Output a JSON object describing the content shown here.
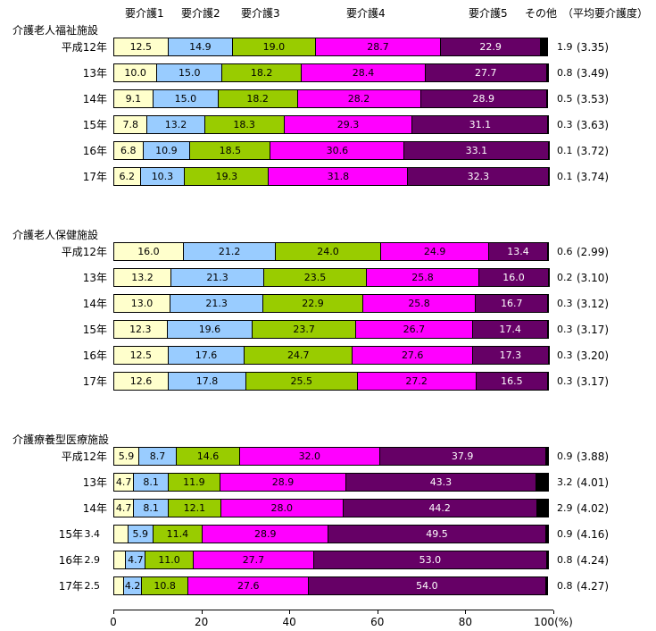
{
  "chart_data": {
    "type": "bar",
    "variant": "horizontal-stacked",
    "title": "",
    "xlabel": "(%)",
    "xlim": [
      0,
      100
    ],
    "grid": false,
    "legend_position": "top",
    "categories": [
      "要介護1",
      "要介護2",
      "要介護3",
      "要介護4",
      "要介護5",
      "その他"
    ],
    "category_colors": [
      "#FFFFCC",
      "#99CCFF",
      "#99CC00",
      "#FF00FF",
      "#660066",
      "#000000"
    ],
    "avg_header": "（平均要介護度）",
    "axis_ticks": [
      {
        "value": 0,
        "label": "0"
      },
      {
        "value": 20,
        "label": "20"
      },
      {
        "value": 40,
        "label": "40"
      },
      {
        "value": 60,
        "label": "60"
      },
      {
        "value": 80,
        "label": "80"
      },
      {
        "value": 100,
        "label": "100(%)"
      }
    ],
    "groups": [
      {
        "name": "介護老人福祉施設",
        "rows": [
          {
            "year": "平成12年",
            "values": [
              12.5,
              14.9,
              19.0,
              28.7,
              22.9,
              1.9
            ],
            "avg": "(3.35)"
          },
          {
            "year": "13年",
            "values": [
              10.0,
              15.0,
              18.2,
              28.4,
              27.7,
              0.8
            ],
            "avg": "(3.49)"
          },
          {
            "year": "14年",
            "values": [
              9.1,
              15.0,
              18.2,
              28.2,
              28.9,
              0.5
            ],
            "avg": "(3.53)"
          },
          {
            "year": "15年",
            "values": [
              7.8,
              13.2,
              18.3,
              29.3,
              31.1,
              0.3
            ],
            "avg": "(3.63)"
          },
          {
            "year": "16年",
            "values": [
              6.8,
              10.9,
              18.5,
              30.6,
              33.1,
              0.1
            ],
            "avg": "(3.72)"
          },
          {
            "year": "17年",
            "values": [
              6.2,
              10.3,
              19.3,
              31.8,
              32.3,
              0.1
            ],
            "avg": "(3.74)"
          }
        ]
      },
      {
        "name": "介護老人保健施設",
        "rows": [
          {
            "year": "平成12年",
            "values": [
              16.0,
              21.2,
              24.0,
              24.9,
              13.4,
              0.6
            ],
            "avg": "(2.99)"
          },
          {
            "year": "13年",
            "values": [
              13.2,
              21.3,
              23.5,
              25.8,
              16.0,
              0.2
            ],
            "avg": "(3.10)"
          },
          {
            "year": "14年",
            "values": [
              13.0,
              21.3,
              22.9,
              25.8,
              16.7,
              0.3
            ],
            "avg": "(3.12)"
          },
          {
            "year": "15年",
            "values": [
              12.3,
              19.6,
              23.7,
              26.7,
              17.4,
              0.3
            ],
            "avg": "(3.17)"
          },
          {
            "year": "16年",
            "values": [
              12.5,
              17.6,
              24.7,
              27.6,
              17.3,
              0.3
            ],
            "avg": "(3.20)"
          },
          {
            "year": "17年",
            "values": [
              12.6,
              17.8,
              25.5,
              27.2,
              16.5,
              0.3
            ],
            "avg": "(3.17)"
          }
        ]
      },
      {
        "name": "介護療養型医療施設",
        "rows": [
          {
            "year": "平成12年",
            "values": [
              5.9,
              8.7,
              14.6,
              32.0,
              37.9,
              0.9
            ],
            "avg": "(3.88)"
          },
          {
            "year": "13年",
            "values": [
              4.7,
              8.1,
              11.9,
              28.9,
              43.3,
              3.2
            ],
            "avg": "(4.01)"
          },
          {
            "year": "14年",
            "values": [
              4.7,
              8.1,
              12.1,
              28.0,
              44.2,
              2.9
            ],
            "avg": "(4.02)"
          },
          {
            "year": "15年",
            "values": [
              3.4,
              5.9,
              11.4,
              28.9,
              49.5,
              0.9
            ],
            "avg": "(4.16)"
          },
          {
            "year": "16年",
            "values": [
              2.9,
              4.7,
              11.0,
              27.7,
              53.0,
              0.8
            ],
            "avg": "(4.24)"
          },
          {
            "year": "17年",
            "values": [
              2.5,
              4.2,
              10.8,
              27.6,
              54.0,
              0.8
            ],
            "avg": "(4.27)"
          }
        ]
      }
    ]
  }
}
